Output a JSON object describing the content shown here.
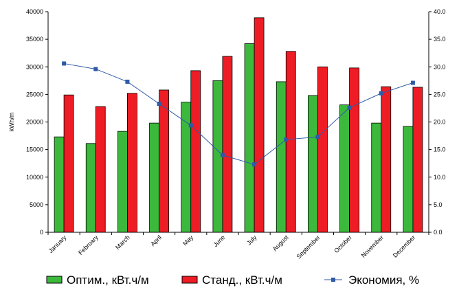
{
  "chart_data": {
    "type": "bar",
    "categories": [
      "January",
      "February",
      "March",
      "April",
      "May",
      "June",
      "July",
      "August",
      "September",
      "October",
      "November",
      "December"
    ],
    "series": [
      {
        "name": "Оптим., кВт.ч/м",
        "type": "bar",
        "axis": "left",
        "color": "#3cb93c",
        "values": [
          17300,
          16100,
          18300,
          19800,
          23600,
          27500,
          34200,
          27300,
          24800,
          23100,
          19800,
          19200
        ]
      },
      {
        "name": "Станд., кВт.ч/м",
        "type": "bar",
        "axis": "left",
        "color": "#ee1c24",
        "values": [
          24900,
          22800,
          25200,
          25800,
          29300,
          31900,
          38900,
          32800,
          30000,
          29800,
          26400,
          26300
        ]
      },
      {
        "name": "Экономия, %",
        "type": "line",
        "axis": "right",
        "color": "#2e5aa7",
        "values": [
          30.6,
          29.6,
          27.3,
          23.3,
          19.4,
          14.0,
          12.3,
          16.8,
          17.3,
          22.6,
          25.2,
          27.1
        ]
      }
    ],
    "ylabel": "kWh/m",
    "ylim": [
      0,
      40000
    ],
    "yticks": [
      0,
      5000,
      10000,
      15000,
      20000,
      25000,
      30000,
      35000,
      40000
    ],
    "ytick_labels": [
      "0",
      "5000",
      "10000",
      "15000",
      "20000",
      "25000",
      "30000",
      "35000",
      "40000"
    ],
    "y2lim": [
      0,
      40
    ],
    "y2ticks": [
      0,
      5,
      10,
      15,
      20,
      25,
      30,
      35,
      40
    ],
    "y2tick_labels": [
      "0.0",
      "5.0",
      "10.0",
      "15.0",
      "20.0",
      "25.0",
      "30.0",
      "35.0",
      "40.0"
    ],
    "grid": false,
    "legend_position": "bottom"
  }
}
